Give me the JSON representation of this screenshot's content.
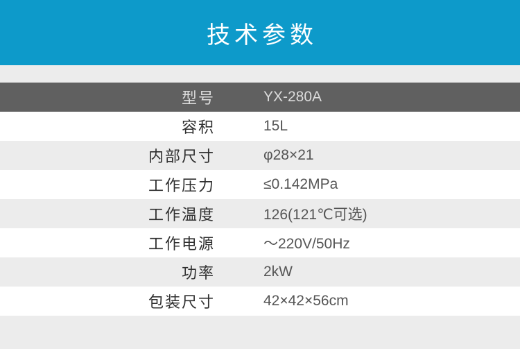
{
  "header": {
    "title": "技术参数"
  },
  "table": {
    "rows": [
      {
        "label": "型号",
        "value": "YX-280A",
        "variant": "dark"
      },
      {
        "label": "容积",
        "value": "15L",
        "variant": "white"
      },
      {
        "label": "内部尺寸",
        "value": "φ28×21",
        "variant": "gray"
      },
      {
        "label": "工作压力",
        "value": "≤0.142MPa",
        "variant": "white"
      },
      {
        "label": "工作温度",
        "value": "126(121℃可选)",
        "variant": "gray"
      },
      {
        "label": "工作电源",
        "value": "～220V/50Hz",
        "variant": "white"
      },
      {
        "label": "功率",
        "value": "2kW",
        "variant": "gray"
      },
      {
        "label": "包装尺寸",
        "value": "42×42×56cm",
        "variant": "white"
      }
    ]
  },
  "colors": {
    "accent": "#0d9aca",
    "dark_row": "#606060",
    "stripe": "#ececec",
    "label_text": "#303030",
    "value_text": "#555555",
    "dark_row_text": "#dcdcdc",
    "banner_text": "#ffffff"
  }
}
